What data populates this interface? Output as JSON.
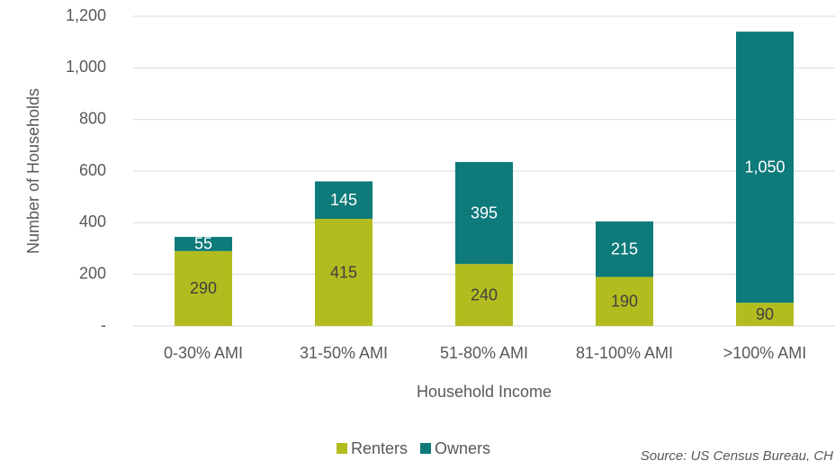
{
  "chart_data": {
    "type": "stacked_bar",
    "x_label": "Household Income",
    "y_label": "Number of Households",
    "source": "Source: US Census Bureau, CH",
    "categories": [
      "0-30% AMI",
      "31-50% AMI",
      "51-80% AMI",
      "81-100% AMI",
      ">100% AMI"
    ],
    "series": [
      {
        "name": "Renters",
        "color": "#b3bc1f",
        "values": [
          290,
          415,
          240,
          190,
          90
        ]
      },
      {
        "name": "Owners",
        "color": "#0e7a7a",
        "values": [
          55,
          145,
          395,
          215,
          1050
        ],
        "value_labels": [
          "55",
          "145",
          "395",
          "215",
          "1,050"
        ]
      }
    ],
    "ylim": [
      0,
      1200
    ],
    "yticks": [
      {
        "value": 0,
        "label": "-"
      },
      200,
      400,
      600,
      800,
      {
        "value": 1000,
        "label": "1,000"
      },
      {
        "value": 1200,
        "label": "1,200"
      }
    ],
    "grid": true,
    "legend": "bottom"
  }
}
